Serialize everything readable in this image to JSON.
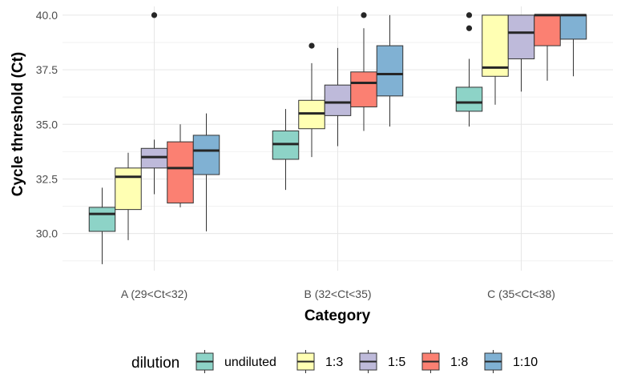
{
  "chart_data": {
    "type": "boxplot",
    "xlabel": "Category",
    "ylabel": "Cycle threshold (Ct)",
    "ylim": [
      28.3,
      40.4
    ],
    "yticks": [
      "30.0",
      "32.5",
      "35.0",
      "37.5",
      "40.0"
    ],
    "categories": [
      "A (29<Ct<32)",
      "B (32<Ct<35)",
      "C (35<Ct<38)"
    ],
    "legend": {
      "title": "dilution",
      "position": "bottom"
    },
    "grid": true,
    "series": [
      {
        "name": "undiluted",
        "color": "#8dd3c7",
        "boxes": [
          {
            "min": 28.6,
            "q1": 30.1,
            "median": 30.9,
            "q3": 31.2,
            "max": 32.1,
            "outliers": []
          },
          {
            "min": 32.0,
            "q1": 33.4,
            "median": 34.1,
            "q3": 34.7,
            "max": 35.7,
            "outliers": []
          },
          {
            "min": 34.9,
            "q1": 35.6,
            "median": 36.0,
            "q3": 36.7,
            "max": 38.0,
            "outliers": [
              40.0,
              39.4
            ]
          }
        ]
      },
      {
        "name": "1:3",
        "color": "#ffffb3",
        "boxes": [
          {
            "min": 29.7,
            "q1": 31.1,
            "median": 32.6,
            "q3": 33.0,
            "max": 33.7,
            "outliers": []
          },
          {
            "min": 33.5,
            "q1": 34.8,
            "median": 35.5,
            "q3": 36.1,
            "max": 37.8,
            "outliers": [
              38.6
            ]
          },
          {
            "min": 35.9,
            "q1": 37.2,
            "median": 37.6,
            "q3": 40.0,
            "max": 40.0,
            "outliers": []
          }
        ]
      },
      {
        "name": "1:5",
        "color": "#bebada",
        "boxes": [
          {
            "min": 31.8,
            "q1": 33.0,
            "median": 33.5,
            "q3": 33.9,
            "max": 34.3,
            "outliers": [
              40.0
            ]
          },
          {
            "min": 34.0,
            "q1": 35.4,
            "median": 36.0,
            "q3": 36.8,
            "max": 38.5,
            "outliers": []
          },
          {
            "min": 36.5,
            "q1": 38.0,
            "median": 39.2,
            "q3": 40.0,
            "max": 40.0,
            "outliers": []
          }
        ]
      },
      {
        "name": "1:8",
        "color": "#fb8072",
        "boxes": [
          {
            "min": 31.2,
            "q1": 31.4,
            "median": 33.0,
            "q3": 34.2,
            "max": 35.0,
            "outliers": []
          },
          {
            "min": 34.7,
            "q1": 35.8,
            "median": 36.9,
            "q3": 37.4,
            "max": 39.4,
            "outliers": [
              40.0
            ]
          },
          {
            "min": 37.0,
            "q1": 38.6,
            "median": 40.0,
            "q3": 40.0,
            "max": 40.0,
            "outliers": []
          }
        ]
      },
      {
        "name": "1:10",
        "color": "#80b1d3",
        "boxes": [
          {
            "min": 30.1,
            "q1": 32.7,
            "median": 33.8,
            "q3": 34.5,
            "max": 35.5,
            "outliers": []
          },
          {
            "min": 34.9,
            "q1": 36.3,
            "median": 37.3,
            "q3": 38.6,
            "max": 40.0,
            "outliers": []
          },
          {
            "min": 37.2,
            "q1": 38.9,
            "median": 40.0,
            "q3": 40.0,
            "max": 40.0,
            "outliers": []
          }
        ]
      }
    ]
  }
}
